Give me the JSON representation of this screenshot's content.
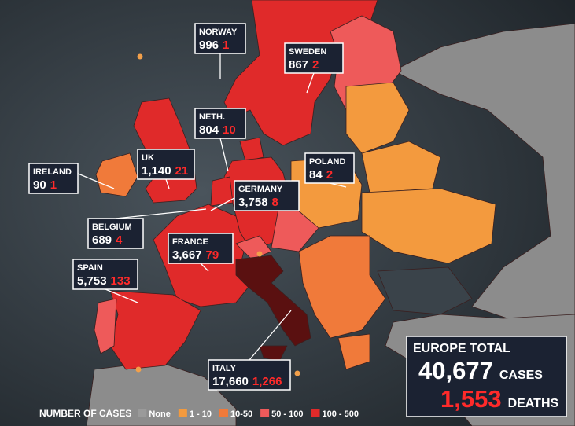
{
  "callouts": [
    {
      "country": "NORWAY",
      "cases": "996",
      "deaths": "1"
    },
    {
      "country": "SWEDEN",
      "cases": "867",
      "deaths": "2"
    },
    {
      "country": "NETH.",
      "cases": "804",
      "deaths": "10"
    },
    {
      "country": "UK",
      "cases": "1,140",
      "deaths": "21"
    },
    {
      "country": "IRELAND",
      "cases": "90",
      "deaths": "1"
    },
    {
      "country": "POLAND",
      "cases": "84",
      "deaths": "2"
    },
    {
      "country": "GERMANY",
      "cases": "3,758",
      "deaths": "8"
    },
    {
      "country": "BELGIUM",
      "cases": "689",
      "deaths": "4"
    },
    {
      "country": "FRANCE",
      "cases": "3,667",
      "deaths": "79"
    },
    {
      "country": "SPAIN",
      "cases": "5,753",
      "deaths": "133"
    },
    {
      "country": "ITALY",
      "cases": "17,660",
      "deaths": "1,266"
    }
  ],
  "total": {
    "title": "EUROPE TOTAL",
    "cases": "40,677",
    "cases_label": "CASES",
    "deaths": "1,553",
    "deaths_label": "DEATHS"
  },
  "legend": {
    "title": "NUMBER OF CASES",
    "items": [
      {
        "label": "None",
        "color": "#9a9a9a"
      },
      {
        "label": "1 - 10",
        "color": "#f39a3e"
      },
      {
        "label": "10-50",
        "color": "#f07a3a"
      },
      {
        "label": "50 - 100",
        "color": "#ee5a5a"
      },
      {
        "label": "100 - 500",
        "color": "#e02a2a"
      }
    ]
  }
}
